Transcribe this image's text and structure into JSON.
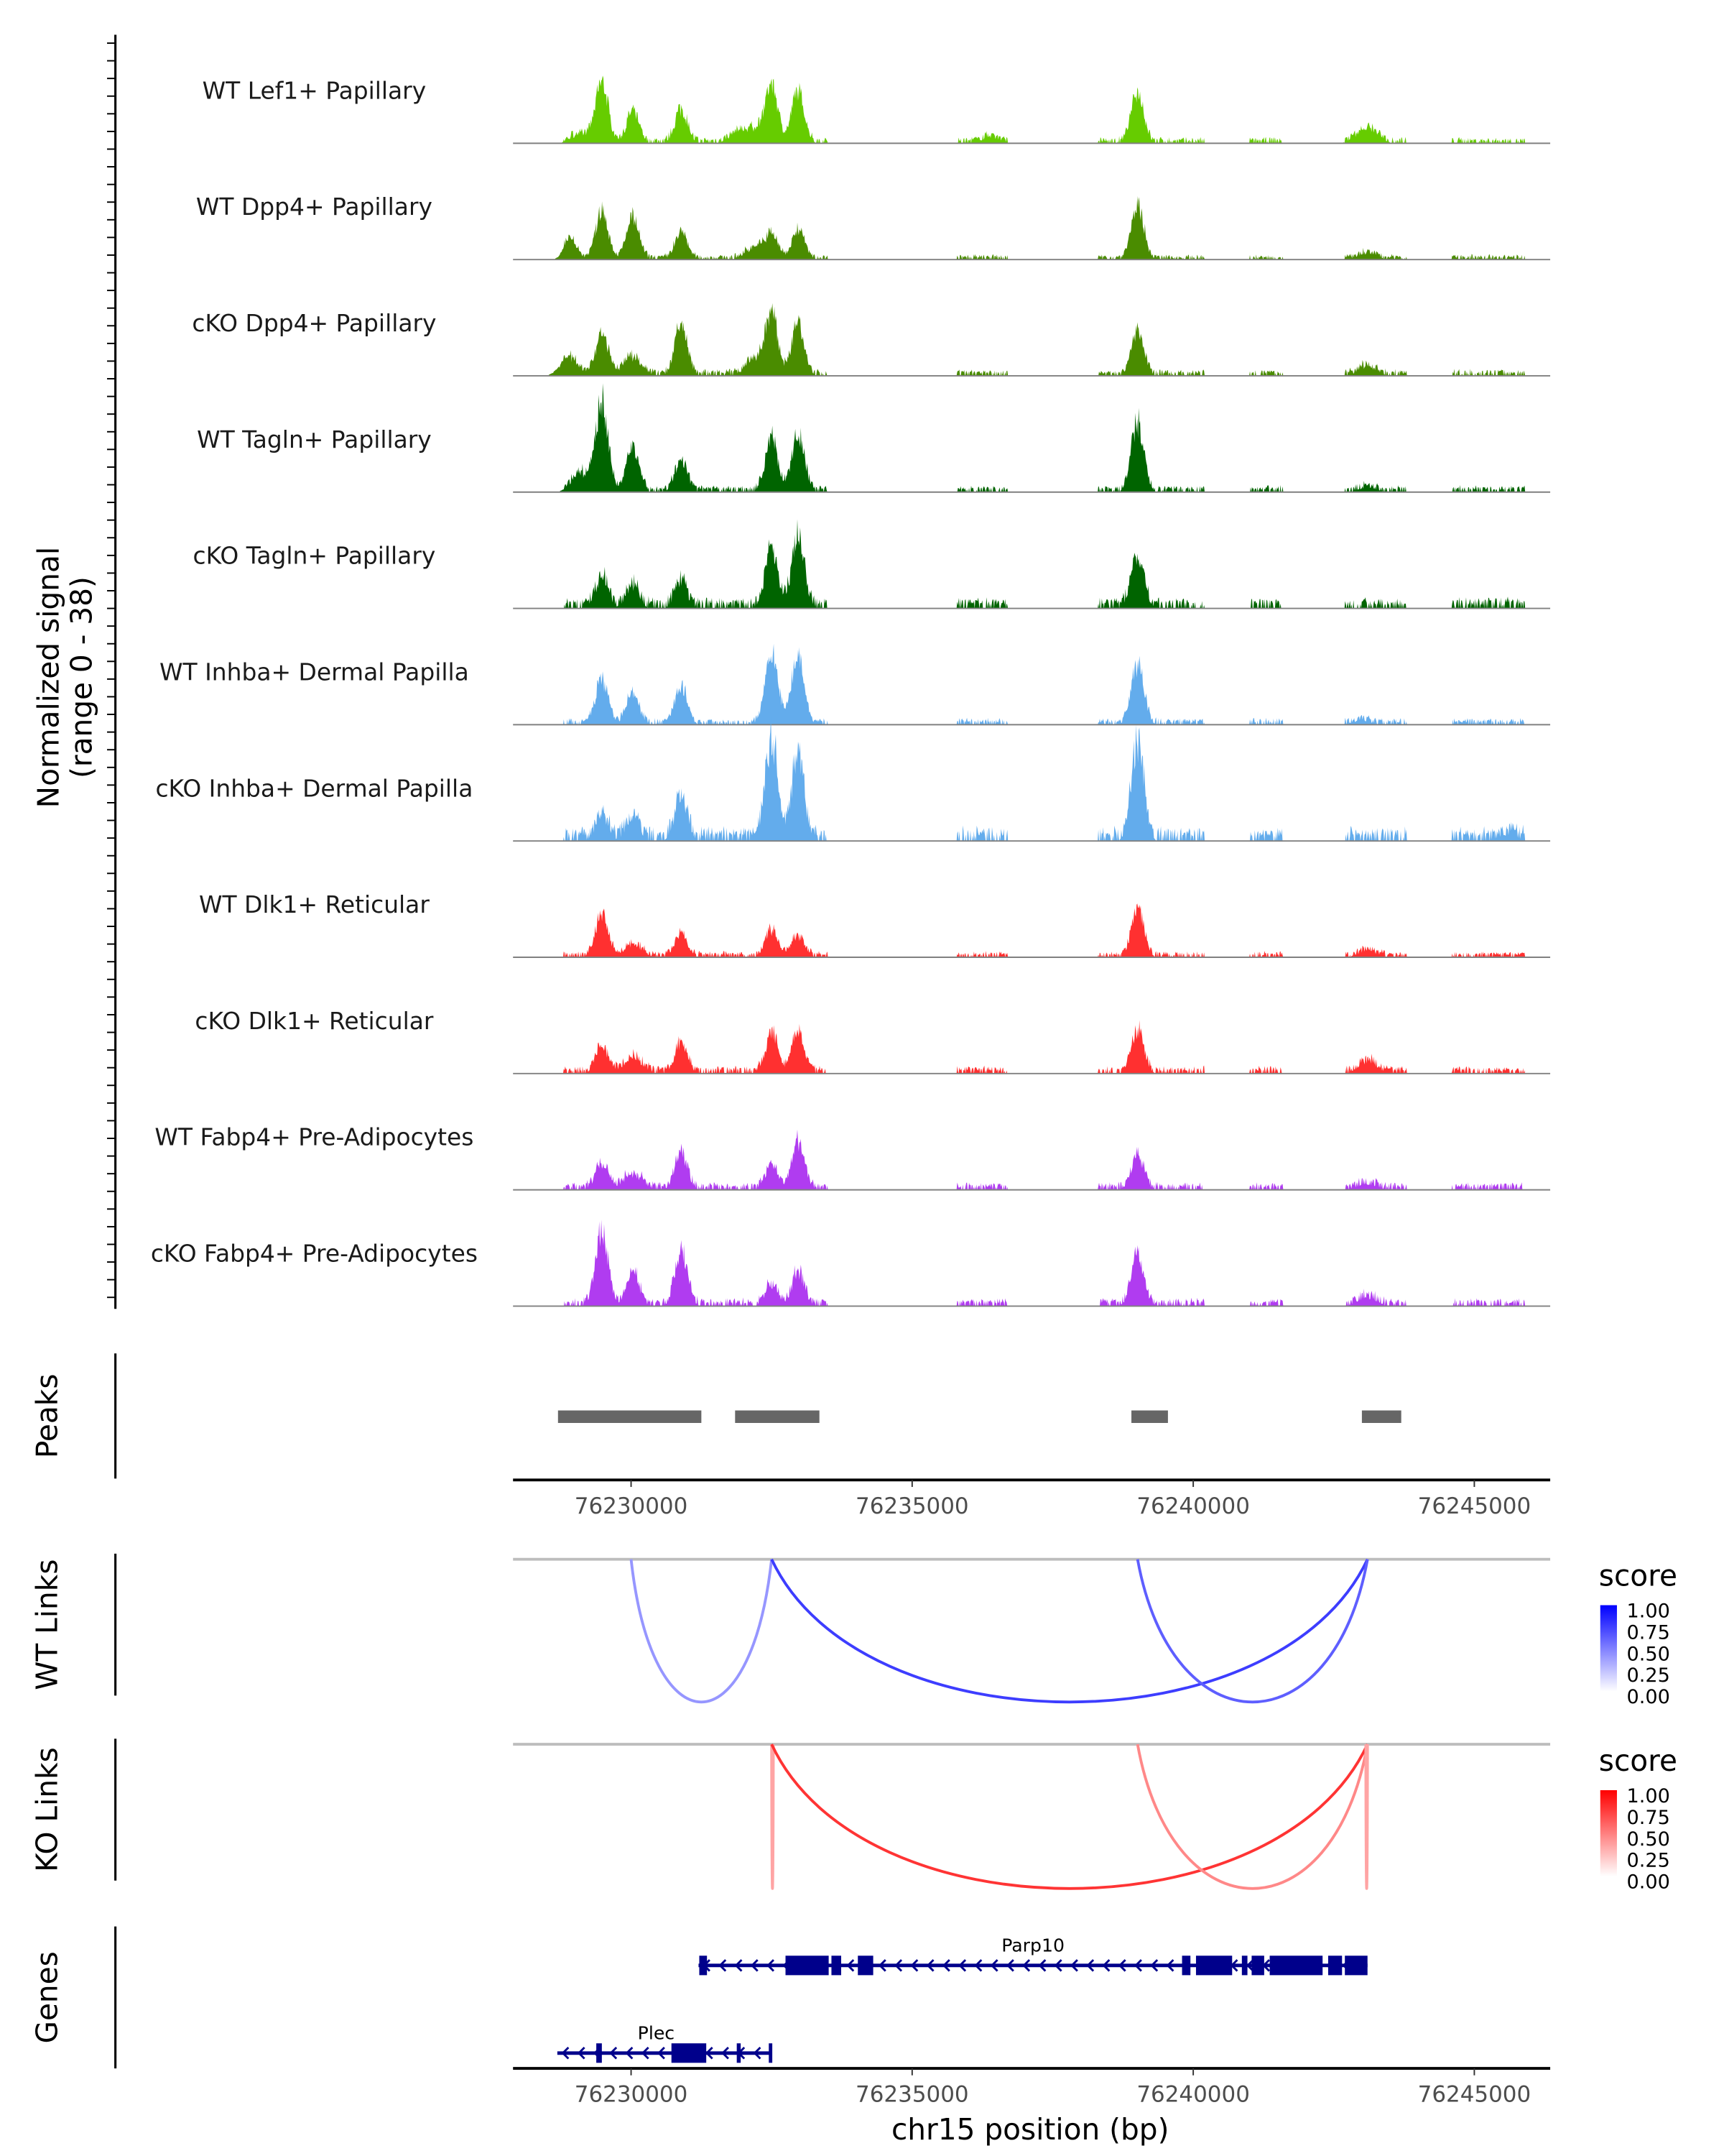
{
  "chart_data": {
    "type": "area",
    "chromosome": "chr15",
    "xlabel": "chr15 position (bp)",
    "ylabel": "Normalized signal",
    "ylabel_sub": "(range 0 - 38)",
    "ylim": [
      0,
      38
    ],
    "xlim": [
      76227900,
      76246350
    ],
    "xticks": [
      76230000,
      76235000,
      76240000,
      76245000
    ],
    "xtick_labels": [
      "76230000",
      "76235000",
      "76240000",
      "76245000"
    ],
    "accessible_regions": [
      [
        76228800,
        76233500
      ],
      [
        76235800,
        76236700
      ],
      [
        76238300,
        76240200
      ],
      [
        76241000,
        76241600
      ],
      [
        76242700,
        76243800
      ],
      [
        76244600,
        76245900
      ]
    ],
    "tracks": [
      {
        "name": "WT Lef1+ Papillary",
        "color": "#66cc00",
        "bg": 1.2,
        "peaks": [
          [
            76229480,
            20
          ],
          [
            76230030,
            10
          ],
          [
            76230890,
            11
          ],
          [
            76229100,
            3
          ],
          [
            76231900,
            3
          ],
          [
            76232500,
            19
          ],
          [
            76232970,
            17
          ],
          [
            76232200,
            4
          ],
          [
            76236400,
            2
          ],
          [
            76239010,
            17
          ],
          [
            76242950,
            1.5
          ],
          [
            76243150,
            4
          ]
        ]
      },
      {
        "name": "WT Dpp4+ Papillary",
        "color": "#4a8c00",
        "bg": 1.0,
        "peaks": [
          [
            76229480,
            16
          ],
          [
            76228920,
            7
          ],
          [
            76230030,
            14
          ],
          [
            76230890,
            9
          ],
          [
            76232500,
            8
          ],
          [
            76232970,
            10
          ],
          [
            76232200,
            4
          ],
          [
            76239010,
            18
          ],
          [
            76243100,
            2
          ]
        ]
      },
      {
        "name": "cKO Dpp4+ Papillary",
        "color": "#4a8c00",
        "bg": 1.3,
        "peaks": [
          [
            76229480,
            14
          ],
          [
            76228900,
            6
          ],
          [
            76230030,
            6
          ],
          [
            76230890,
            17
          ],
          [
            76232500,
            20
          ],
          [
            76232970,
            17
          ],
          [
            76232200,
            5
          ],
          [
            76239010,
            15
          ],
          [
            76243100,
            3
          ]
        ]
      },
      {
        "name": "WT Tagln+ Papillary",
        "color": "#006400",
        "bg": 1.3,
        "peaks": [
          [
            76229480,
            30
          ],
          [
            76229100,
            6
          ],
          [
            76230030,
            15
          ],
          [
            76230890,
            10
          ],
          [
            76232500,
            18
          ],
          [
            76232970,
            19
          ],
          [
            76239010,
            23
          ],
          [
            76243100,
            1.5
          ]
        ]
      },
      {
        "name": "cKO Tagln+ Papillary",
        "color": "#006400",
        "bg": 2.2,
        "peaks": [
          [
            76229480,
            10
          ],
          [
            76230030,
            7
          ],
          [
            76230890,
            8
          ],
          [
            76232500,
            20
          ],
          [
            76232970,
            24
          ],
          [
            76239010,
            18
          ]
        ]
      },
      {
        "name": "WT Inhba+ Dermal Papilla",
        "color": "#63acec",
        "bg": 1.3,
        "peaks": [
          [
            76229480,
            15
          ],
          [
            76230030,
            10
          ],
          [
            76230890,
            12
          ],
          [
            76232500,
            24
          ],
          [
            76232970,
            24
          ],
          [
            76239010,
            20
          ],
          [
            76243000,
            1.5
          ]
        ]
      },
      {
        "name": "cKO Inhba+ Dermal Papilla",
        "color": "#63acec",
        "bg": 2.8,
        "peaks": [
          [
            76229480,
            8
          ],
          [
            76230030,
            8
          ],
          [
            76230890,
            14
          ],
          [
            76232500,
            34
          ],
          [
            76232970,
            28
          ],
          [
            76239010,
            32
          ],
          [
            76245600,
            2
          ]
        ]
      },
      {
        "name": "WT Dlk1+ Reticular",
        "color": "#ff3030",
        "bg": 1.2,
        "peaks": [
          [
            76229480,
            15
          ],
          [
            76230030,
            4
          ],
          [
            76230890,
            8
          ],
          [
            76232500,
            9
          ],
          [
            76232970,
            7
          ],
          [
            76239010,
            16
          ],
          [
            76243100,
            2
          ]
        ]
      },
      {
        "name": "cKO Dlk1+ Reticular",
        "color": "#ff3030",
        "bg": 1.5,
        "peaks": [
          [
            76229480,
            9
          ],
          [
            76230030,
            5
          ],
          [
            76230890,
            10
          ],
          [
            76232500,
            13
          ],
          [
            76232970,
            13
          ],
          [
            76239010,
            14
          ],
          [
            76243100,
            4
          ]
        ]
      },
      {
        "name": "WT Fabp4+ Pre-Adipocytes",
        "color": "#b03cf0",
        "bg": 1.5,
        "peaks": [
          [
            76229480,
            8
          ],
          [
            76230030,
            5
          ],
          [
            76230890,
            12
          ],
          [
            76232500,
            8
          ],
          [
            76232970,
            16
          ],
          [
            76239010,
            11
          ],
          [
            76243100,
            2
          ]
        ]
      },
      {
        "name": "cKO Fabp4+ Pre-Adipocytes",
        "color": "#b03cf0",
        "bg": 1.6,
        "peaks": [
          [
            76229480,
            25
          ],
          [
            76230030,
            11
          ],
          [
            76230890,
            18
          ],
          [
            76232500,
            7
          ],
          [
            76232970,
            11
          ],
          [
            76239010,
            17
          ],
          [
            76243100,
            3
          ]
        ]
      }
    ],
    "peaks_track": {
      "label": "Peaks",
      "color": "#666666",
      "regions": [
        [
          76228700,
          76231250
        ],
        [
          76231850,
          76233350
        ],
        [
          76238900,
          76239550
        ],
        [
          76243000,
          76243700
        ]
      ]
    },
    "links": [
      {
        "label": "WT Links",
        "legend_title": "score",
        "color_high": "#0000ff",
        "legend_ticks": [
          "1.00",
          "0.75",
          "0.50",
          "0.25",
          "0.00"
        ],
        "arcs": [
          [
            76230000,
            76232500,
            0.3
          ],
          [
            76232500,
            76243100,
            0.62
          ],
          [
            76239010,
            76243100,
            0.5
          ]
        ]
      },
      {
        "label": "KO Links",
        "legend_title": "score",
        "color_high": "#ff0000",
        "legend_ticks": [
          "1.00",
          "0.75",
          "0.50",
          "0.25",
          "0.00"
        ],
        "arcs": [
          [
            76232500,
            76232530,
            0.25
          ],
          [
            76232500,
            76243100,
            0.65
          ],
          [
            76239010,
            76243100,
            0.35
          ],
          [
            76243070,
            76243100,
            0.25
          ]
        ]
      }
    ],
    "genes": {
      "label": "Genes",
      "items": [
        {
          "name": "Parp10",
          "strand": "-",
          "start": 76231200,
          "end": 76243100,
          "row": 0,
          "exons": [
            [
              76231213,
              76231350
            ],
            [
              76232747,
              76233515
            ],
            [
              76233564,
              76233737
            ],
            [
              76234034,
              76234307
            ],
            [
              76239801,
              76239950
            ],
            [
              76240049,
              76240692
            ],
            [
              76240865,
              76240964
            ],
            [
              76241039,
              76241262
            ],
            [
              76241360,
              76242301
            ],
            [
              76242400,
              76242647
            ],
            [
              76242697,
              76243100
            ]
          ]
        },
        {
          "name": "Plec",
          "strand": "-",
          "start": 76228688,
          "end": 76232500,
          "row": 1,
          "exons": [
            [
              76229381,
              76229480
            ],
            [
              76230718,
              76231337
            ],
            [
              76231880,
              76231950
            ],
            [
              76232450,
              76232500
            ]
          ]
        }
      ]
    }
  }
}
